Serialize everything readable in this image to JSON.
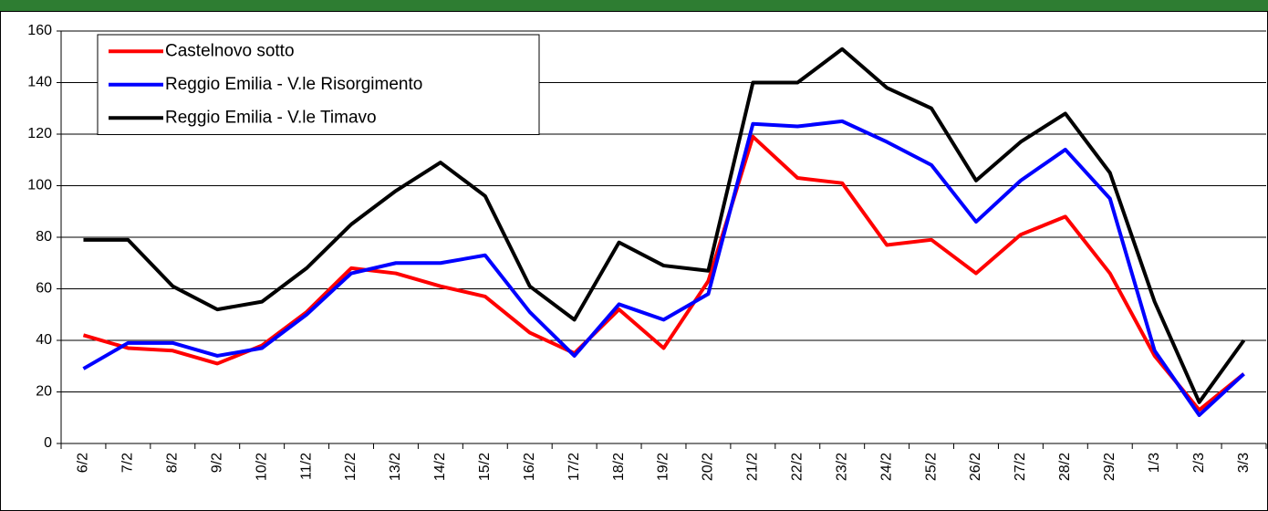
{
  "chart_data": {
    "type": "line",
    "categories": [
      "6/2",
      "7/2",
      "8/2",
      "9/2",
      "10/2",
      "11/2",
      "12/2",
      "13/2",
      "14/2",
      "15/2",
      "16/2",
      "17/2",
      "18/2",
      "19/2",
      "20/2",
      "21/2",
      "22/2",
      "23/2",
      "24/2",
      "25/2",
      "26/2",
      "27/2",
      "28/2",
      "29/2",
      "1/3",
      "2/3",
      "3/3"
    ],
    "series": [
      {
        "name": "Castelnovo sotto",
        "color": "#ff0000",
        "values": [
          42,
          37,
          36,
          31,
          38,
          51,
          68,
          66,
          61,
          57,
          43,
          35,
          52,
          37,
          63,
          119,
          103,
          101,
          77,
          79,
          66,
          81,
          88,
          66,
          34,
          13,
          27
        ]
      },
      {
        "name": "Reggio Emilia - V.le Risorgimento",
        "color": "#0000ff",
        "values": [
          29,
          39,
          39,
          34,
          37,
          50,
          66,
          70,
          70,
          73,
          51,
          34,
          54,
          48,
          58,
          124,
          123,
          125,
          117,
          108,
          86,
          102,
          114,
          95,
          36,
          11,
          27
        ]
      },
      {
        "name": "Reggio Emilia - V.le Timavo",
        "color": "#000000",
        "values": [
          79,
          79,
          61,
          52,
          55,
          68,
          85,
          98,
          109,
          96,
          61,
          48,
          78,
          69,
          67,
          140,
          140,
          153,
          138,
          130,
          102,
          117,
          128,
          105,
          55,
          16,
          40
        ]
      }
    ],
    "ylim": [
      0,
      160
    ],
    "yticks": [
      0,
      20,
      40,
      60,
      80,
      100,
      120,
      140,
      160
    ],
    "grid": true,
    "legend": "upper-left"
  }
}
